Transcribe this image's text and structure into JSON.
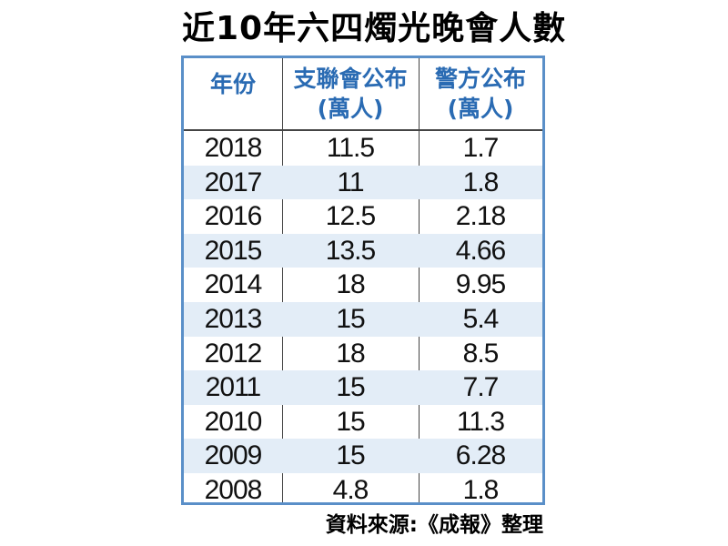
{
  "chart_data": {
    "type": "table",
    "title": "近10年六四燭光晚會人數",
    "columns": [
      {
        "line1": "年份",
        "line2": ""
      },
      {
        "line1": "支聯會公布",
        "line2": "(萬人)"
      },
      {
        "line1": "警方公布",
        "line2": "(萬人)"
      }
    ],
    "rows": [
      [
        "2018",
        "11.5",
        "1.7"
      ],
      [
        "2017",
        "11",
        "1.8"
      ],
      [
        "2016",
        "12.5",
        "2.18"
      ],
      [
        "2015",
        "13.5",
        "4.66"
      ],
      [
        "2014",
        "18",
        "9.95"
      ],
      [
        "2013",
        "15",
        "5.4"
      ],
      [
        "2012",
        "18",
        "8.5"
      ],
      [
        "2011",
        "15",
        "7.7"
      ],
      [
        "2010",
        "15",
        "11.3"
      ],
      [
        "2009",
        "15",
        "6.28"
      ],
      [
        "2008",
        "4.8",
        "1.8"
      ]
    ],
    "source": "資料來源:《成報》整理"
  },
  "colors": {
    "header_text": "#2a6bb3",
    "border": "#5a8fc8",
    "row_shade": "#e3edf7"
  }
}
